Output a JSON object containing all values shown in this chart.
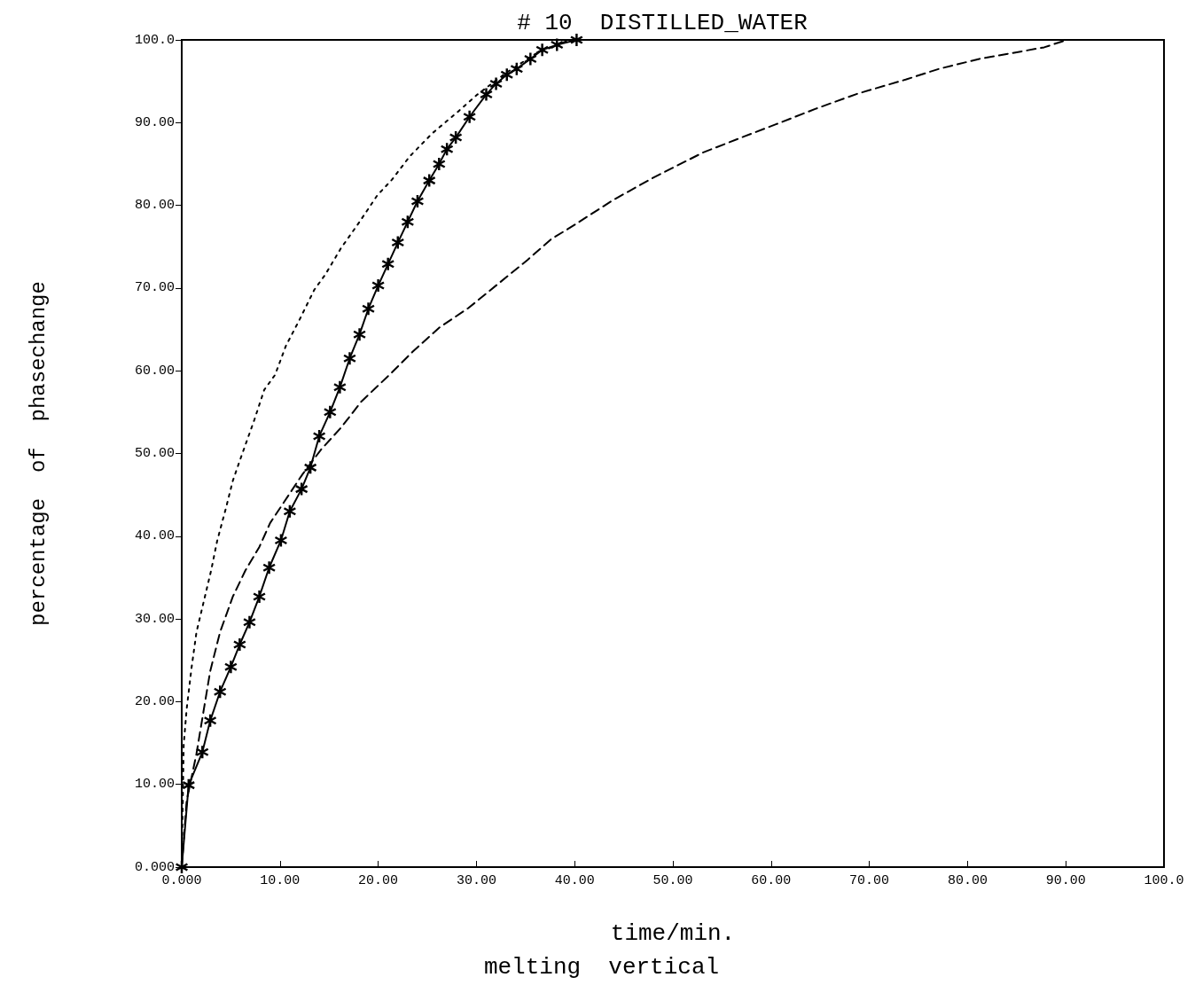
{
  "chart_data": {
    "type": "line",
    "title": "# 10  DISTILLED_WATER",
    "xlabel": "time/min.",
    "ylabel": "percentage  of  phasechange",
    "annotations": [
      "melting  vertical"
    ],
    "xlim": [
      0,
      100
    ],
    "ylim": [
      0,
      100
    ],
    "xticks": [
      {
        "value": 0,
        "label": "0.000"
      },
      {
        "value": 10,
        "label": "10.00"
      },
      {
        "value": 20,
        "label": "20.00"
      },
      {
        "value": 30,
        "label": "30.00"
      },
      {
        "value": 40,
        "label": "40.00"
      },
      {
        "value": 50,
        "label": "50.00"
      },
      {
        "value": 60,
        "label": "60.00"
      },
      {
        "value": 70,
        "label": "70.00"
      },
      {
        "value": 80,
        "label": "80.00"
      },
      {
        "value": 90,
        "label": "90.00"
      },
      {
        "value": 100,
        "label": "100.0"
      }
    ],
    "yticks": [
      {
        "value": 0,
        "label": "0.000"
      },
      {
        "value": 10,
        "label": "10.00"
      },
      {
        "value": 20,
        "label": "20.00"
      },
      {
        "value": 30,
        "label": "30.00"
      },
      {
        "value": 40,
        "label": "40.00"
      },
      {
        "value": 50,
        "label": "50.00"
      },
      {
        "value": 60,
        "label": "60.00"
      },
      {
        "value": 70,
        "label": "70.00"
      },
      {
        "value": 80,
        "label": "80.00"
      },
      {
        "value": 90,
        "label": "90.00"
      },
      {
        "value": 100,
        "label": "100.0"
      }
    ],
    "grid": false,
    "series": [
      {
        "color": "#000000",
        "marker": "cross",
        "line_style": "solid",
        "x": [
          0,
          0.7,
          2.1,
          2.9,
          3.9,
          5.0,
          5.9,
          6.9,
          7.9,
          8.9,
          10.1,
          11.0,
          12.2,
          13.1,
          14.0,
          15.1,
          16.1,
          17.1,
          18.1,
          19.0,
          20.0,
          21.0,
          22.0,
          23.0,
          24.0,
          25.2,
          26.2,
          27.0,
          27.9,
          29.3,
          31.0,
          32.0,
          33.1,
          34.1,
          35.5,
          36.7,
          38.2,
          40.2
        ],
        "values": [
          0,
          9.9,
          13.9,
          17.7,
          21.2,
          24.2,
          26.9,
          29.6,
          32.7,
          36.2,
          39.5,
          43.0,
          45.7,
          48.3,
          52.1,
          55.0,
          58.0,
          61.5,
          64.4,
          67.5,
          70.3,
          72.9,
          75.5,
          78.0,
          80.5,
          83.0,
          85.0,
          86.8,
          88.2,
          90.7,
          93.4,
          94.7,
          95.8,
          96.5,
          97.7,
          98.8,
          99.4,
          100
        ]
      },
      {
        "color": "#000000",
        "marker": "none",
        "line_style": "dotted",
        "x": [
          0,
          0.2,
          0.5,
          1.0,
          1.5,
          2.2,
          3.0,
          3.6,
          4.5,
          5.2,
          5.9,
          6.8,
          7.4,
          8.4,
          9.5,
          10.6,
          12.0,
          13.5,
          14.6,
          16.2,
          18.1,
          19.9,
          21.4,
          23.2,
          25.5,
          28.0,
          30.1,
          33.0,
          36.0,
          39.5
        ],
        "values": [
          0,
          14.8,
          19.1,
          24.1,
          28.4,
          31.9,
          35.9,
          39.4,
          43.4,
          46.7,
          49.1,
          52.1,
          54.1,
          57.7,
          59.5,
          63.0,
          66.2,
          69.8,
          71.6,
          74.8,
          78.0,
          81.2,
          83.1,
          85.9,
          88.7,
          91.2,
          93.4,
          96.0,
          98.3,
          100
        ]
      },
      {
        "color": "#000000",
        "marker": "none",
        "line_style": "dashed",
        "x": [
          0,
          0.5,
          1.5,
          2.1,
          2.9,
          3.9,
          5.2,
          6.5,
          7.9,
          9.0,
          10.4,
          12.3,
          14.2,
          16.2,
          18.3,
          21.4,
          23.5,
          26.2,
          29.2,
          32.2,
          35.2,
          37.6,
          39.8,
          44.0,
          48.1,
          53.1,
          57.2,
          60.5,
          64.6,
          68.8,
          73.7,
          77.1,
          81.2,
          84.5,
          87.8,
          90.1
        ],
        "values": [
          0,
          8.0,
          13.7,
          18.0,
          23.7,
          28.4,
          32.7,
          35.9,
          38.7,
          41.6,
          44.1,
          47.5,
          50.5,
          53.1,
          56.3,
          59.8,
          62.3,
          65.2,
          67.6,
          70.5,
          73.4,
          75.9,
          77.5,
          80.7,
          83.4,
          86.4,
          88.3,
          89.8,
          91.7,
          93.5,
          95.2,
          96.5,
          97.7,
          98.4,
          99.1,
          100
        ]
      }
    ]
  }
}
